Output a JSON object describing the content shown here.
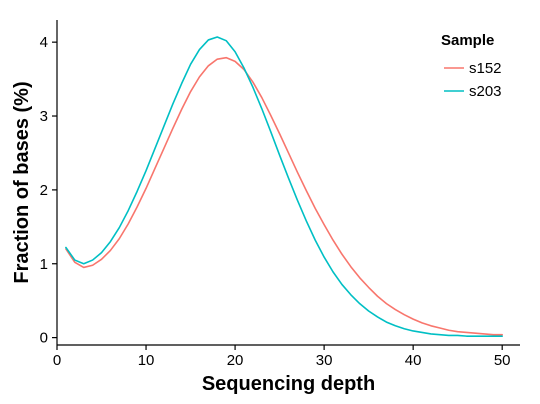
{
  "chart_data": {
    "type": "line",
    "xlabel": "Sequencing depth",
    "ylabel": "Fraction of bases (%)",
    "xlim": [
      0,
      52
    ],
    "ylim": [
      -0.1,
      4.3
    ],
    "xticks": [
      0,
      10,
      20,
      30,
      40,
      50
    ],
    "yticks": [
      0,
      1,
      2,
      3,
      4
    ],
    "legend": {
      "title": "Sample",
      "position": "top-right"
    },
    "grid": false,
    "series": [
      {
        "name": "s152",
        "color": "#F8766D",
        "x": [
          1,
          2,
          3,
          4,
          5,
          6,
          7,
          8,
          9,
          10,
          11,
          12,
          13,
          14,
          15,
          16,
          17,
          18,
          19,
          20,
          21,
          22,
          23,
          24,
          25,
          26,
          27,
          28,
          29,
          30,
          31,
          32,
          33,
          34,
          35,
          36,
          37,
          38,
          39,
          40,
          41,
          42,
          43,
          44,
          45,
          46,
          47,
          48,
          49,
          50
        ],
        "values": [
          1.2,
          1.02,
          0.95,
          0.98,
          1.06,
          1.18,
          1.34,
          1.54,
          1.77,
          2.02,
          2.29,
          2.56,
          2.83,
          3.09,
          3.33,
          3.53,
          3.68,
          3.77,
          3.79,
          3.74,
          3.63,
          3.46,
          3.25,
          3.01,
          2.76,
          2.5,
          2.24,
          1.99,
          1.75,
          1.53,
          1.32,
          1.13,
          0.96,
          0.81,
          0.68,
          0.56,
          0.46,
          0.38,
          0.31,
          0.25,
          0.2,
          0.16,
          0.13,
          0.1,
          0.08,
          0.07,
          0.06,
          0.05,
          0.04,
          0.04
        ]
      },
      {
        "name": "s203",
        "color": "#00BFC4",
        "x": [
          1,
          2,
          3,
          4,
          5,
          6,
          7,
          8,
          9,
          10,
          11,
          12,
          13,
          14,
          15,
          16,
          17,
          18,
          19,
          20,
          21,
          22,
          23,
          24,
          25,
          26,
          27,
          28,
          29,
          30,
          31,
          32,
          33,
          34,
          35,
          36,
          37,
          38,
          39,
          40,
          41,
          42,
          43,
          44,
          45,
          46,
          47,
          48,
          49,
          50
        ],
        "values": [
          1.22,
          1.05,
          1.0,
          1.05,
          1.15,
          1.3,
          1.49,
          1.72,
          1.98,
          2.26,
          2.56,
          2.86,
          3.16,
          3.44,
          3.7,
          3.9,
          4.03,
          4.07,
          4.02,
          3.87,
          3.65,
          3.39,
          3.1,
          2.79,
          2.47,
          2.16,
          1.86,
          1.58,
          1.32,
          1.09,
          0.89,
          0.72,
          0.58,
          0.46,
          0.36,
          0.28,
          0.21,
          0.16,
          0.12,
          0.09,
          0.07,
          0.05,
          0.04,
          0.03,
          0.03,
          0.02,
          0.02,
          0.02,
          0.02,
          0.02
        ]
      }
    ]
  }
}
